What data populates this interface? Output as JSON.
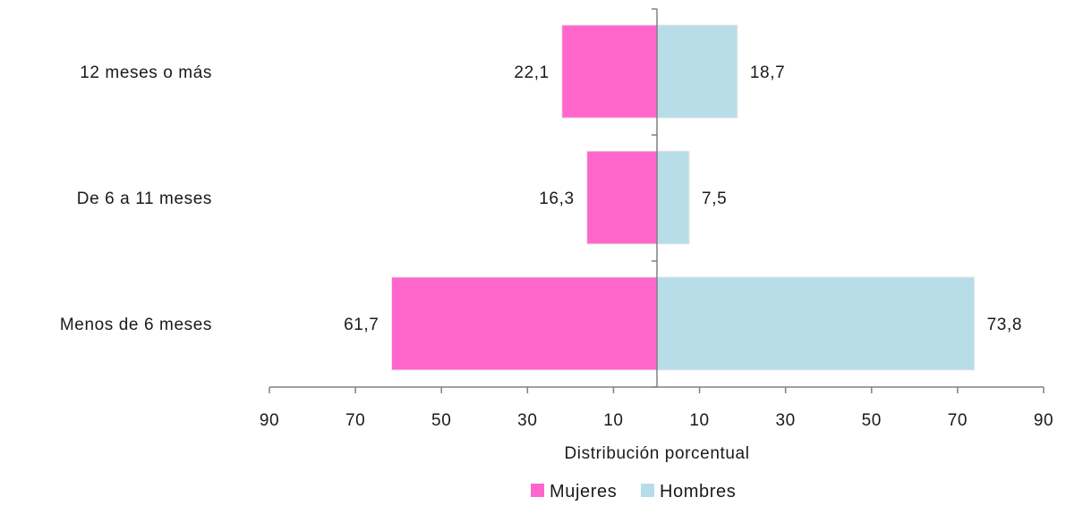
{
  "chart_data": {
    "type": "bar",
    "orientation": "horizontal",
    "layout": "diverging",
    "categories": [
      "12 meses o más",
      "De 6 a 11 meses",
      "Menos de 6 meses"
    ],
    "series": [
      {
        "name": "Mujeres",
        "side": "left",
        "color": "#ff66cc",
        "values": [
          22.1,
          16.3,
          61.7
        ],
        "labels": [
          "22,1",
          "16,3",
          "61,7"
        ]
      },
      {
        "name": "Hombres",
        "side": "right",
        "color": "#b7dde8",
        "values": [
          18.7,
          7.5,
          73.8
        ],
        "labels": [
          "18,7",
          "7,5",
          "73,8"
        ]
      }
    ],
    "xlabel": "Distribución porcentual",
    "xlim": [
      -90,
      90
    ],
    "x_ticks": [
      -90,
      -70,
      -50,
      -30,
      -10,
      10,
      30,
      50,
      70,
      90
    ],
    "x_tick_labels": [
      "90",
      "70",
      "50",
      "30",
      "10",
      "10",
      "30",
      "50",
      "70",
      "90"
    ],
    "grid": false,
    "legend_position": "bottom-center"
  }
}
